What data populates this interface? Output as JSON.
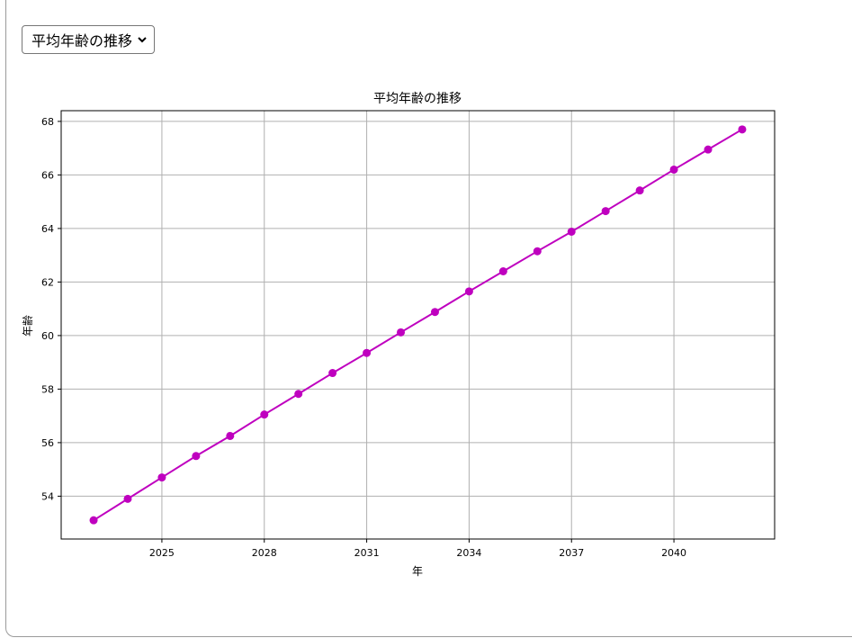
{
  "selector": {
    "selected": "平均年齢の推移",
    "icon": "chevron-down-icon"
  },
  "chart_data": {
    "type": "line",
    "title": "平均年齢の推移",
    "xlabel": "年",
    "ylabel": "年齢",
    "x": [
      2023,
      2024,
      2025,
      2026,
      2027,
      2028,
      2029,
      2030,
      2031,
      2032,
      2033,
      2034,
      2035,
      2036,
      2037,
      2038,
      2039,
      2040,
      2041,
      2042
    ],
    "series": [
      {
        "values": [
          53.1,
          53.9,
          54.7,
          55.5,
          56.25,
          57.05,
          57.82,
          58.6,
          59.35,
          60.12,
          60.88,
          61.65,
          62.4,
          63.15,
          63.88,
          64.65,
          65.42,
          66.2,
          66.95,
          67.7
        ]
      }
    ],
    "xticks": [
      2025,
      2028,
      2031,
      2034,
      2037,
      2040
    ],
    "yticks": [
      54,
      56,
      58,
      60,
      62,
      64,
      66,
      68
    ],
    "xlim": [
      2022.05,
      2042.95
    ],
    "ylim": [
      52.4,
      68.4
    ],
    "grid": true,
    "color": "#bf00bf"
  }
}
